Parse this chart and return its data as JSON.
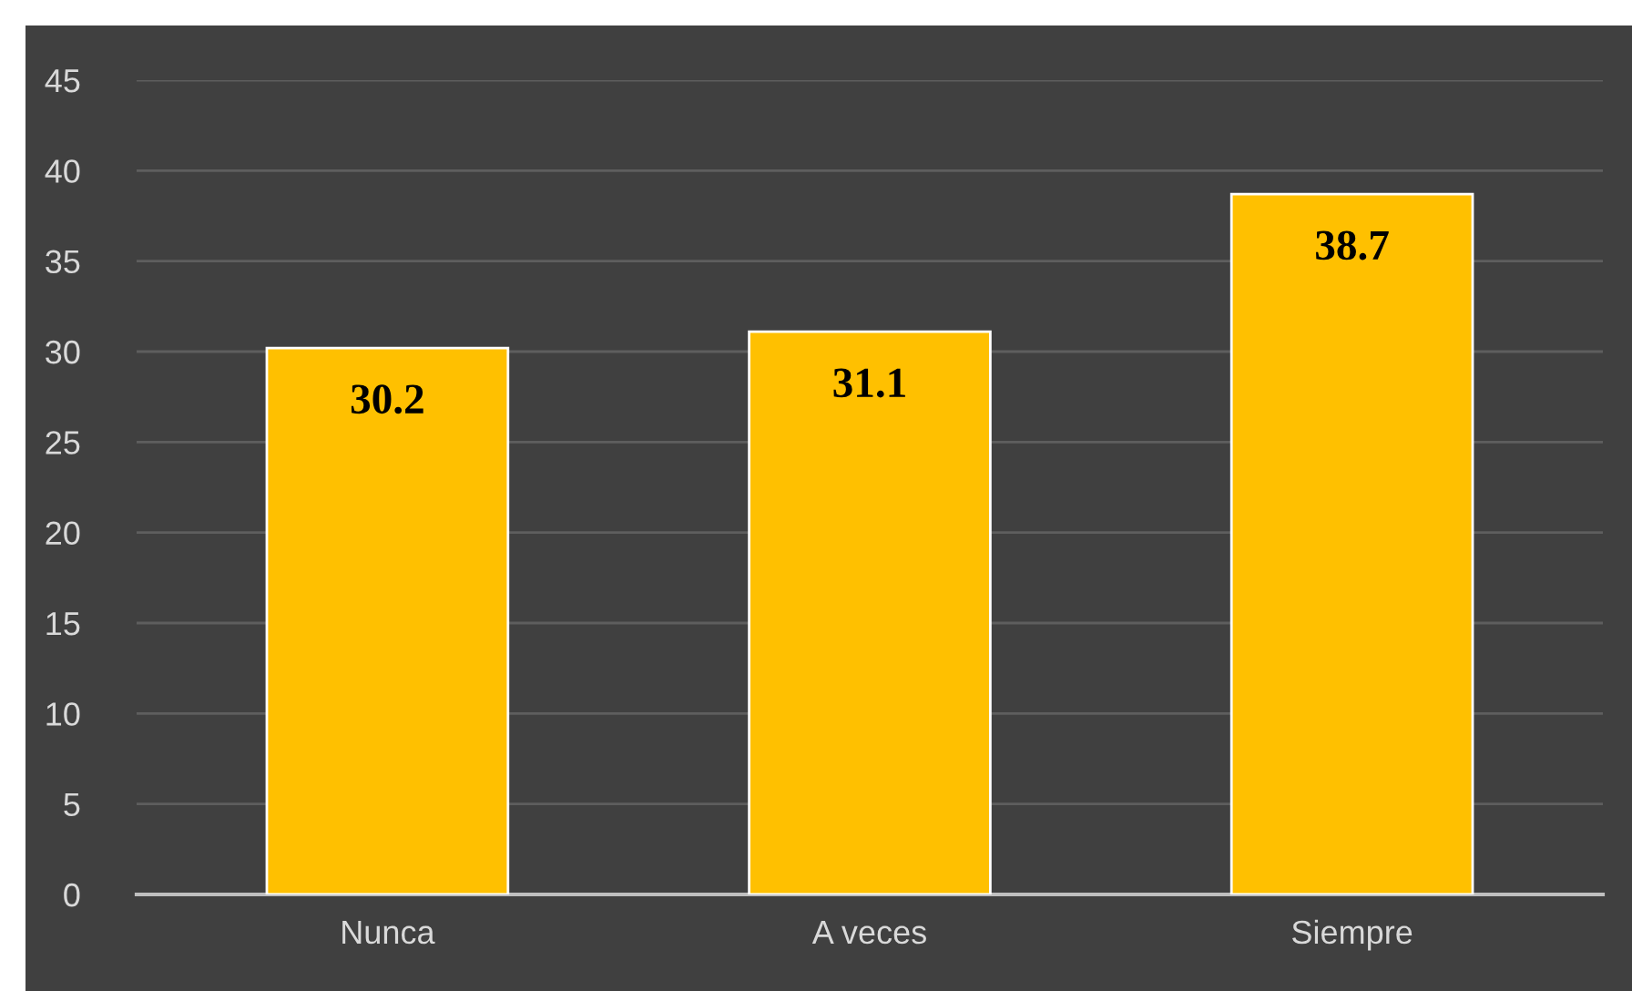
{
  "chart_data": {
    "type": "bar",
    "categories": [
      "Nunca",
      "A veces",
      "Siempre"
    ],
    "values": [
      30.2,
      31.1,
      38.7
    ],
    "color": "#ffc000",
    "ylim": [
      0,
      45
    ],
    "yticks": [
      0,
      5,
      10,
      15,
      20,
      25,
      30,
      35,
      40,
      45
    ],
    "grid": "y",
    "data_labels": true
  }
}
